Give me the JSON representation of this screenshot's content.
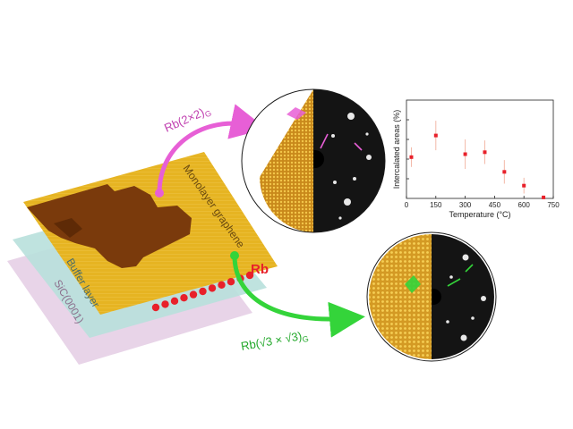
{
  "labels": {
    "monolayer": "Monolayer graphene",
    "buffer": "Buffer layer",
    "substrate": "SiC(0001)",
    "rb": "Rb",
    "phase_2x2": "Rb(2×2)",
    "phase_2x2_sub": "G",
    "phase_sqrt3": "Rb(√3 × √3)",
    "phase_sqrt3_sub": "G"
  },
  "colors": {
    "graphene": "#e6b422",
    "graphene_dark": "#7a3a0c",
    "buffer": "#b8e0dc",
    "substrate": "#e6cfe6",
    "rb": "#e8202a",
    "magenta_arrow": "#e75fd6",
    "green_arrow": "#34d43a"
  },
  "chart_data": {
    "type": "scatter",
    "xlabel": "Temperature (°C)",
    "ylabel": "Intercalated areas (%)",
    "xlim": [
      0,
      750
    ],
    "ylim": [
      0,
      100
    ],
    "xticks": [
      0,
      150,
      300,
      450,
      600,
      750
    ],
    "x": [
      25,
      150,
      300,
      400,
      500,
      600,
      700
    ],
    "y": [
      42,
      64,
      45,
      47,
      27,
      13,
      1
    ],
    "err": [
      10,
      15,
      15,
      12,
      12,
      8,
      2
    ],
    "grid": false,
    "marker_color": "#e8202a"
  }
}
